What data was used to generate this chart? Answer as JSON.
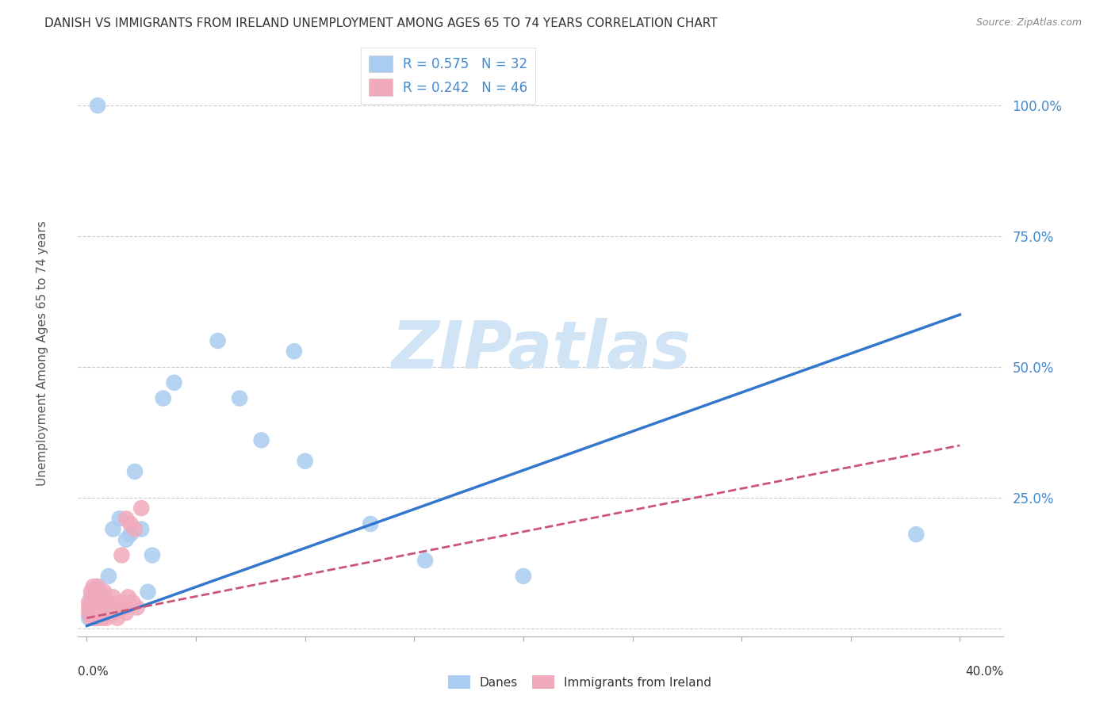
{
  "title": "DANISH VS IMMIGRANTS FROM IRELAND UNEMPLOYMENT AMONG AGES 65 TO 74 YEARS CORRELATION CHART",
  "source": "Source: ZipAtlas.com",
  "ylabel": "Unemployment Among Ages 65 to 74 years",
  "danes_R": 0.575,
  "danes_N": 32,
  "ireland_R": 0.242,
  "ireland_N": 46,
  "danes_color": "#aaccf0",
  "ireland_color": "#f0aabb",
  "danes_line_color": "#3377cc",
  "ireland_line_color": "#cc5577",
  "watermark_text": "ZIPatlas",
  "watermark_color": "#d0e4f5",
  "danes_x": [
    0.001,
    0.002,
    0.002,
    0.003,
    0.004,
    0.005,
    0.005,
    0.006,
    0.007,
    0.008,
    0.009,
    0.01,
    0.012,
    0.015,
    0.018,
    0.02,
    0.022,
    0.025,
    0.028,
    0.03,
    0.035,
    0.04,
    0.06,
    0.07,
    0.08,
    0.095,
    0.1,
    0.13,
    0.155,
    0.2,
    0.38,
    0.005
  ],
  "danes_y": [
    0.02,
    0.03,
    0.06,
    0.04,
    0.02,
    0.05,
    0.08,
    0.03,
    0.05,
    0.04,
    0.05,
    0.1,
    0.19,
    0.21,
    0.17,
    0.18,
    0.3,
    0.19,
    0.07,
    0.14,
    0.44,
    0.47,
    0.55,
    0.44,
    0.36,
    0.53,
    0.32,
    0.2,
    0.13,
    0.1,
    0.18,
    1.0
  ],
  "ireland_x": [
    0.001,
    0.001,
    0.001,
    0.002,
    0.002,
    0.002,
    0.003,
    0.003,
    0.003,
    0.004,
    0.004,
    0.004,
    0.005,
    0.005,
    0.005,
    0.005,
    0.006,
    0.006,
    0.006,
    0.007,
    0.007,
    0.007,
    0.008,
    0.008,
    0.008,
    0.009,
    0.009,
    0.01,
    0.01,
    0.011,
    0.012,
    0.012,
    0.013,
    0.014,
    0.015,
    0.016,
    0.016,
    0.017,
    0.018,
    0.018,
    0.019,
    0.02,
    0.021,
    0.022,
    0.023,
    0.025
  ],
  "ireland_y": [
    0.03,
    0.04,
    0.05,
    0.02,
    0.04,
    0.07,
    0.03,
    0.05,
    0.08,
    0.02,
    0.04,
    0.06,
    0.02,
    0.04,
    0.06,
    0.08,
    0.03,
    0.05,
    0.07,
    0.02,
    0.04,
    0.06,
    0.03,
    0.05,
    0.07,
    0.02,
    0.04,
    0.03,
    0.05,
    0.04,
    0.03,
    0.06,
    0.04,
    0.02,
    0.04,
    0.14,
    0.05,
    0.04,
    0.03,
    0.21,
    0.06,
    0.2,
    0.05,
    0.19,
    0.04,
    0.23
  ],
  "danes_trend_x0": 0.0,
  "danes_trend_y0": 0.005,
  "danes_trend_x1": 0.4,
  "danes_trend_y1": 0.6,
  "ireland_trend_x0": 0.0,
  "ireland_trend_y0": 0.02,
  "ireland_trend_x1": 0.4,
  "ireland_trend_y1": 0.35,
  "xlim_min": -0.004,
  "xlim_max": 0.42,
  "ylim_min": -0.015,
  "ylim_max": 1.08,
  "yticks": [
    0.0,
    0.25,
    0.5,
    0.75,
    1.0
  ],
  "ytick_labels": [
    "",
    "25.0%",
    "50.0%",
    "75.0%",
    "100.0%"
  ],
  "xtick_positions": [
    0.0,
    0.05,
    0.1,
    0.15,
    0.2,
    0.25,
    0.3,
    0.35,
    0.4
  ],
  "grid_color": "#cccccc",
  "spine_color": "#aaaaaa",
  "tick_label_color": "#4488cc",
  "title_color": "#333333",
  "source_color": "#888888",
  "ylabel_color": "#555555"
}
